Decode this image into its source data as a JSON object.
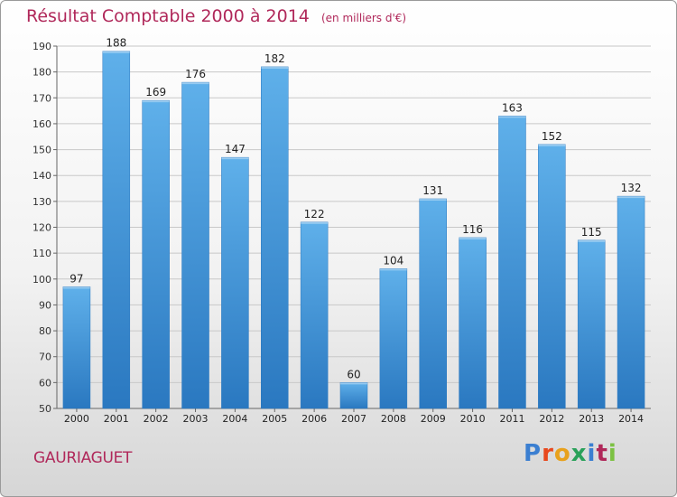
{
  "header": {
    "title": "Résultat Comptable 2000 à 2014",
    "subtitle": "(en milliers d'€)"
  },
  "footer": {
    "town": "GAURIAGUET",
    "logo_text": "Proxiti",
    "logo_letter_colors": [
      "#3b7fd1",
      "#e8481d",
      "#e8a11c",
      "#2aa15a",
      "#3b7fd1",
      "#b0285a",
      "#7cc142"
    ]
  },
  "colors": {
    "bar": "#3a8fd6",
    "bar_light": "#5fb0ea",
    "bar_dark": "#2a78c0",
    "accent": "#b0285a"
  },
  "chart_data": {
    "type": "bar",
    "categories": [
      "2000",
      "2001",
      "2002",
      "2003",
      "2004",
      "2005",
      "2006",
      "2007",
      "2008",
      "2009",
      "2010",
      "2011",
      "2012",
      "2013",
      "2014"
    ],
    "values": [
      97,
      188,
      169,
      176,
      147,
      182,
      122,
      60,
      104,
      131,
      116,
      163,
      152,
      115,
      132
    ],
    "ylim": [
      50,
      190
    ],
    "yticks": [
      50,
      60,
      70,
      80,
      90,
      100,
      110,
      120,
      130,
      140,
      150,
      160,
      170,
      180,
      190
    ],
    "grid": true,
    "title": "Résultat Comptable 2000 à 2014",
    "subtitle": "(en milliers d'€)"
  }
}
